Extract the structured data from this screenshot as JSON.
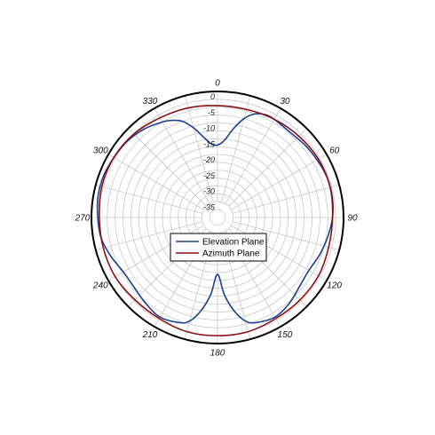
{
  "chart_data": {
    "type": "polar-line",
    "title": "",
    "radial_axis": {
      "range": [
        -40,
        0
      ],
      "ticks": [
        0,
        -5,
        -10,
        -15,
        -20,
        -25,
        -30,
        -35
      ],
      "tick_labels": [
        "0",
        "-5",
        "-10",
        "-15",
        "-20",
        "-25",
        "-30",
        "-35"
      ]
    },
    "angular_axis": {
      "direction": "clockwise",
      "zero_at": "top",
      "ticks": [
        0,
        30,
        60,
        90,
        120,
        150,
        180,
        210,
        240,
        270,
        300,
        330
      ],
      "tick_labels": [
        "0",
        "30",
        "60",
        "90",
        "120",
        "150",
        "180",
        "210",
        "240",
        "270",
        "300",
        "330"
      ]
    },
    "legend": {
      "position": "center",
      "entries": [
        "Elevation Plane",
        "Azimuth Plane"
      ]
    },
    "series": [
      {
        "name": "Elevation Plane",
        "color": "#1c3f94",
        "theta": [
          0,
          5,
          10,
          15,
          20,
          25,
          30,
          40,
          50,
          60,
          70,
          80,
          90,
          100,
          110,
          120,
          130,
          140,
          150,
          160,
          165,
          170,
          175,
          180,
          185,
          190,
          195,
          200,
          210,
          220,
          230,
          240,
          250,
          260,
          270,
          280,
          290,
          300,
          310,
          320,
          330,
          335,
          340,
          345,
          350,
          355
        ],
        "r": [
          -17,
          -15.5,
          -11.5,
          -7.5,
          -5,
          -4,
          -4,
          -4.5,
          -4,
          -3.5,
          -3,
          -3,
          -3.5,
          -4.5,
          -5.5,
          -6.5,
          -6,
          -4.5,
          -3.5,
          -4.5,
          -6,
          -10,
          -15.5,
          -22,
          -15.5,
          -10,
          -6,
          -4.5,
          -3.5,
          -4.5,
          -5.5,
          -5.5,
          -4,
          -2.5,
          -2,
          -1.5,
          -1.5,
          -2,
          -2.5,
          -3.5,
          -5,
          -6,
          -7.5,
          -10.5,
          -14,
          -16.5
        ]
      },
      {
        "name": "Azimuth Plane",
        "color": "#8b1010",
        "theta": [
          0,
          15,
          30,
          45,
          60,
          75,
          90,
          105,
          120,
          135,
          150,
          165,
          180,
          195,
          210,
          225,
          240,
          255,
          270,
          285,
          300,
          315,
          330,
          345
        ],
        "r": [
          -4.5,
          -4.5,
          -4,
          -3.5,
          -3,
          -3,
          -3.5,
          -3.5,
          -3,
          -3,
          -3,
          -2.5,
          -2.5,
          -2.5,
          -3,
          -3,
          -2.5,
          -2.5,
          -2.5,
          -2,
          -2,
          -2.5,
          -3.5,
          -4
        ]
      }
    ]
  }
}
